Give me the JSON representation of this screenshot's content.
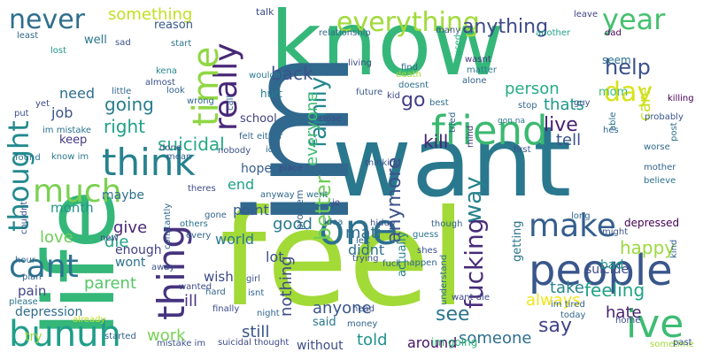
{
  "wordcloud": {
    "background": "#ffffff",
    "palette": [
      "#440154",
      "#482878",
      "#3e4a89",
      "#31688e",
      "#26828e",
      "#1f9e89",
      "#35b779",
      "#6ece58",
      "#b5de2b",
      "#fde725"
    ],
    "words": [
      {
        "text": "feel",
        "color": "#a2da37",
        "vertical": false
      },
      {
        "text": "know",
        "color": "#35b779",
        "vertical": false
      },
      {
        "text": "want",
        "color": "#2a788e",
        "vertical": false
      },
      {
        "text": "im",
        "color": "#31688e",
        "vertical": true
      },
      {
        "text": "life",
        "color": "#35b779",
        "vertical": true
      },
      {
        "text": "people",
        "color": "#39568c",
        "vertical": false
      },
      {
        "text": "friend",
        "color": "#3ab970",
        "vertical": false
      },
      {
        "text": "think",
        "color": "#26828e",
        "vertical": false
      },
      {
        "text": "one",
        "color": "#2c718e",
        "vertical": false
      },
      {
        "text": "ive",
        "color": "#3dbc74",
        "vertical": false
      },
      {
        "text": "really",
        "color": "#482878",
        "vertical": true
      },
      {
        "text": "time",
        "color": "#8fd744",
        "vertical": true
      },
      {
        "text": "thing",
        "color": "#46337f",
        "vertical": true
      },
      {
        "text": "cant",
        "color": "#2c728e",
        "vertical": false
      },
      {
        "text": "bunuh",
        "color": "#1f9e89",
        "vertical": false
      },
      {
        "text": "much",
        "color": "#7ad151",
        "vertical": false
      },
      {
        "text": "make",
        "color": "#355f8d",
        "vertical": false
      },
      {
        "text": "thought",
        "color": "#23898e",
        "vertical": true
      },
      {
        "text": "everything",
        "color": "#a0da39",
        "vertical": false
      },
      {
        "text": "never",
        "color": "#2e6e8e",
        "vertical": false
      },
      {
        "text": "year",
        "color": "#46c06f",
        "vertical": false
      },
      {
        "text": "day",
        "color": "#d8e219",
        "vertical": false
      },
      {
        "text": "help",
        "color": "#3b528b",
        "vertical": false
      },
      {
        "text": "family",
        "color": "#24878e",
        "vertical": true
      },
      {
        "text": "fucking",
        "color": "#472c7a",
        "vertical": true
      },
      {
        "text": "way",
        "color": "#26828e",
        "vertical": true
      },
      {
        "text": "anything",
        "color": "#3e4a89",
        "vertical": false
      },
      {
        "text": "something",
        "color": "#c2df23",
        "vertical": false
      },
      {
        "text": "go",
        "color": "#433e85",
        "vertical": false
      },
      {
        "text": "say",
        "color": "#414487",
        "vertical": false
      },
      {
        "text": "good",
        "color": "#2a768e",
        "vertical": false
      },
      {
        "text": "see",
        "color": "#2b748e",
        "vertical": false
      },
      {
        "text": "better",
        "color": "#6ece58",
        "vertical": true
      },
      {
        "text": "anymore",
        "color": "#3b528b",
        "vertical": true
      },
      {
        "text": "going",
        "color": "#287d8e",
        "vertical": false
      },
      {
        "text": "right",
        "color": "#1fa088",
        "vertical": false
      },
      {
        "text": "back",
        "color": "#3b528b",
        "vertical": false
      },
      {
        "text": "suicidal",
        "color": "#24aa83",
        "vertical": false
      },
      {
        "text": "kill",
        "color": "#482374",
        "vertical": false
      },
      {
        "text": "live",
        "color": "#482071",
        "vertical": false
      },
      {
        "text": "thats",
        "color": "#1f968b",
        "vertical": false
      },
      {
        "text": "tell",
        "color": "#3b528b",
        "vertical": false
      },
      {
        "text": "person",
        "color": "#25ac82",
        "vertical": false
      },
      {
        "text": "care",
        "color": "#c8e020",
        "vertical": true
      },
      {
        "text": "everyone",
        "color": "#3fbc73",
        "vertical": true
      },
      {
        "text": "nothing",
        "color": "#3e4c8a",
        "vertical": true
      },
      {
        "text": "happy",
        "color": "#9bd93c",
        "vertical": false
      },
      {
        "text": "always",
        "color": "#f1e51d",
        "vertical": false
      },
      {
        "text": "take",
        "color": "#25838e",
        "vertical": false
      },
      {
        "text": "feeling",
        "color": "#20a386",
        "vertical": false
      },
      {
        "text": "hate",
        "color": "#481f70",
        "vertical": false
      },
      {
        "text": "anyone",
        "color": "#39568c",
        "vertical": false
      },
      {
        "text": "someone",
        "color": "#2d708e",
        "vertical": false
      },
      {
        "text": "told",
        "color": "#20928c",
        "vertical": false
      },
      {
        "text": "around",
        "color": "#471063",
        "vertical": false
      },
      {
        "text": "work",
        "color": "#77d153",
        "vertical": false
      },
      {
        "text": "still",
        "color": "#39558c",
        "vertical": false
      },
      {
        "text": "love",
        "color": "#6ece58",
        "vertical": false
      },
      {
        "text": "give",
        "color": "#482878",
        "vertical": false
      },
      {
        "text": "die",
        "color": "#1fa287",
        "vertical": false
      },
      {
        "text": "parent",
        "color": "#56c667",
        "vertical": false
      },
      {
        "text": "ill",
        "color": "#46337f",
        "vertical": false
      },
      {
        "text": "month",
        "color": "#1f958b",
        "vertical": false
      },
      {
        "text": "end",
        "color": "#1fa188",
        "vertical": false
      },
      {
        "text": "need",
        "color": "#2e6d8e",
        "vertical": false
      },
      {
        "text": "job",
        "color": "#3a548c",
        "vertical": false
      },
      {
        "text": "mati",
        "color": "#2e6e8e",
        "vertical": false
      },
      {
        "text": "didnt",
        "color": "#2d708e",
        "vertical": false
      },
      {
        "text": "lot",
        "color": "#3b518b",
        "vertical": false
      },
      {
        "text": "point",
        "color": "#365d8d",
        "vertical": false
      },
      {
        "text": "world",
        "color": "#2a788e",
        "vertical": false
      },
      {
        "text": "hope",
        "color": "#355f8d",
        "vertical": false
      },
      {
        "text": "maybe",
        "color": "#2e6f8e",
        "vertical": false
      },
      {
        "text": "enough",
        "color": "#424186",
        "vertical": false
      },
      {
        "text": "wish",
        "color": "#3e4a89",
        "vertical": false
      },
      {
        "text": "wont",
        "color": "#2c718e",
        "vertical": false
      },
      {
        "text": "pain",
        "color": "#3f4788",
        "vertical": false
      },
      {
        "text": "depression",
        "color": "#2f6c8e",
        "vertical": false
      },
      {
        "text": "try",
        "color": "#9fda3a",
        "vertical": false
      },
      {
        "text": "said",
        "color": "#2a778e",
        "vertical": false
      },
      {
        "text": "without",
        "color": "#3d4d8a",
        "vertical": false
      },
      {
        "text": "im going",
        "color": "#31b57b",
        "vertical": false
      },
      {
        "text": "suicide",
        "color": "#3e4989",
        "vertical": false
      },
      {
        "text": "bad",
        "color": "#1e9c89",
        "vertical": false
      },
      {
        "text": "depressed",
        "color": "#440154",
        "vertical": false
      },
      {
        "text": "actually",
        "color": "#26818e",
        "vertical": true
      },
      {
        "text": "getting",
        "color": "#2b758e",
        "vertical": true
      },
      {
        "text": "school",
        "color": "#424186",
        "vertical": false
      },
      {
        "text": "keep",
        "color": "#453781",
        "vertical": false
      },
      {
        "text": "reason",
        "color": "#38588c",
        "vertical": false
      },
      {
        "text": "well",
        "color": "#2a768e",
        "vertical": false
      },
      {
        "text": "hurt",
        "color": "#287c8e",
        "vertical": false
      },
      {
        "text": "mom",
        "color": "#3fbc73",
        "vertical": false
      },
      {
        "text": "seem",
        "color": "#2c728e",
        "vertical": false
      },
      {
        "text": "problem",
        "color": "#33638d",
        "vertical": true
      },
      {
        "text": "talk",
        "color": "#3c4f8a",
        "vertical": false
      },
      {
        "text": "relationship",
        "color": "#31688e",
        "vertical": false
      },
      {
        "text": "many",
        "color": "#3b528b",
        "vertical": false
      },
      {
        "text": "used",
        "color": "#26ad81",
        "vertical": true
      },
      {
        "text": "another",
        "color": "#1fa188",
        "vertical": false
      },
      {
        "text": "dad",
        "color": "#440154",
        "vertical": false
      },
      {
        "text": "leave",
        "color": "#414487",
        "vertical": false
      },
      {
        "text": "wouldnt",
        "color": "#2a788e",
        "vertical": false
      },
      {
        "text": "lost",
        "color": "#1f9a8a",
        "vertical": false
      },
      {
        "text": "sad",
        "color": "#3b528b",
        "vertical": false
      },
      {
        "text": "start",
        "color": "#2b748e",
        "vertical": false
      },
      {
        "text": "least",
        "color": "#31688e",
        "vertical": false
      },
      {
        "text": "yet",
        "color": "#3e4a89",
        "vertical": false
      },
      {
        "text": "almost",
        "color": "#3b528b",
        "vertical": false
      },
      {
        "text": "kena",
        "color": "#25858e",
        "vertical": false
      },
      {
        "text": "little",
        "color": "#31688e",
        "vertical": false
      },
      {
        "text": "look",
        "color": "#33638d",
        "vertical": false
      },
      {
        "text": "im mistake",
        "color": "#2c728e",
        "vertical": false
      },
      {
        "text": "living",
        "color": "#3e4a89",
        "vertical": false
      },
      {
        "text": "find",
        "color": "#31688e",
        "vertical": false
      },
      {
        "text": "wasnt",
        "color": "#453781",
        "vertical": false
      },
      {
        "text": "matter",
        "color": "#2a788e",
        "vertical": false
      },
      {
        "text": "death",
        "color": "#a8db34",
        "vertical": false
      },
      {
        "text": "future",
        "color": "#38588c",
        "vertical": false
      },
      {
        "text": "doesnt",
        "color": "#2d708e",
        "vertical": false
      },
      {
        "text": "alone",
        "color": "#33638d",
        "vertical": false
      },
      {
        "text": "best",
        "color": "#2e6f8e",
        "vertical": false
      },
      {
        "text": "kid",
        "color": "#3e4a89",
        "vertical": false
      },
      {
        "text": "stop",
        "color": "#31688e",
        "vertical": false
      },
      {
        "text": "guy",
        "color": "#3b528b",
        "vertical": false
      },
      {
        "text": "tried",
        "color": "#33638d",
        "vertical": true
      },
      {
        "text": "mind",
        "color": "#46337f",
        "vertical": true
      },
      {
        "text": "close",
        "color": "#3e4a89",
        "vertical": false
      },
      {
        "text": "gon na",
        "color": "#2c728e",
        "vertical": false
      },
      {
        "text": "probably",
        "color": "#38588c",
        "vertical": false
      },
      {
        "text": "able",
        "color": "#2b748e",
        "vertical": true
      },
      {
        "text": "hes",
        "color": "#31688e",
        "vertical": false
      },
      {
        "text": "killing",
        "color": "#440154",
        "vertical": false
      },
      {
        "text": "post",
        "color": "#2e6e8e",
        "vertical": true
      },
      {
        "text": "worse",
        "color": "#31688e",
        "vertical": false
      },
      {
        "text": "first",
        "color": "#3b528b",
        "vertical": false
      },
      {
        "text": "mother",
        "color": "#33638d",
        "vertical": false
      },
      {
        "text": "believe",
        "color": "#2c728e",
        "vertical": false
      },
      {
        "text": "call",
        "color": "#33638d",
        "vertical": true
      },
      {
        "text": "put",
        "color": "#3b528b",
        "vertical": false
      },
      {
        "text": "felt",
        "color": "#31688e",
        "vertical": false
      },
      {
        "text": "either",
        "color": "#2e6f8e",
        "vertical": false
      },
      {
        "text": "done",
        "color": "#3b528b",
        "vertical": false
      },
      {
        "text": "mean",
        "color": "#33638d",
        "vertical": false
      },
      {
        "text": "found",
        "color": "#2c728e",
        "vertical": false
      },
      {
        "text": "know im",
        "color": "#2a788e",
        "vertical": false
      },
      {
        "text": "nobody",
        "color": "#3b528b",
        "vertical": false
      },
      {
        "text": "id",
        "color": "#31688e",
        "vertical": false
      },
      {
        "text": "place",
        "color": "#3e4a89",
        "vertical": false
      },
      {
        "text": "went",
        "color": "#2d708e",
        "vertical": false
      },
      {
        "text": "thinking",
        "color": "#3b528b",
        "vertical": false
      },
      {
        "text": "theres",
        "color": "#3e4a89",
        "vertical": false
      },
      {
        "text": "anyway",
        "color": "#31688e",
        "vertical": false
      },
      {
        "text": "je",
        "color": "#414487",
        "vertical": false
      },
      {
        "text": "couldnt",
        "color": "#3b528b",
        "vertical": true
      },
      {
        "text": "constantly",
        "color": "#31688e",
        "vertical": true
      },
      {
        "text": "gone",
        "color": "#33638d",
        "vertical": false
      },
      {
        "text": "every",
        "color": "#31688e",
        "vertical": false
      },
      {
        "text": "others",
        "color": "#2c728e",
        "vertical": false
      },
      {
        "text": "new",
        "color": "#3e4a89",
        "vertical": false
      },
      {
        "text": "hour",
        "color": "#31688e",
        "vertical": false
      },
      {
        "text": "away",
        "color": "#3b528b",
        "vertical": false
      },
      {
        "text": "plan",
        "color": "#33638d",
        "vertical": false
      },
      {
        "text": "please",
        "color": "#2c728e",
        "vertical": false
      },
      {
        "text": "wanted",
        "color": "#3e4a89",
        "vertical": false
      },
      {
        "text": "hard",
        "color": "#31688e",
        "vertical": false
      },
      {
        "text": "girl",
        "color": "#3b528b",
        "vertical": false
      },
      {
        "text": "isnt",
        "color": "#33638d",
        "vertical": false
      },
      {
        "text": "idea",
        "color": "#31688e",
        "vertical": false
      },
      {
        "text": "hidup",
        "color": "#3e4a89",
        "vertical": false
      },
      {
        "text": "left",
        "color": "#31688e",
        "vertical": false
      },
      {
        "text": "trying",
        "color": "#3b528b",
        "vertical": false
      },
      {
        "text": "fuck",
        "color": "#33638d",
        "vertical": false
      },
      {
        "text": "guess",
        "color": "#2c728e",
        "vertical": false
      },
      {
        "text": "shes",
        "color": "#3b528b",
        "vertical": false
      },
      {
        "text": "happen",
        "color": "#31688e",
        "vertical": false
      },
      {
        "text": "understand",
        "color": "#2e6f8e",
        "vertical": true
      },
      {
        "text": "want die",
        "color": "#3e4a89",
        "vertical": false
      },
      {
        "text": "im tired",
        "color": "#33638d",
        "vertical": false
      },
      {
        "text": "long",
        "color": "#31688e",
        "vertical": false
      },
      {
        "text": "might",
        "color": "#3b528b",
        "vertical": false
      },
      {
        "text": "kind",
        "color": "#33638d",
        "vertical": true
      },
      {
        "text": "today",
        "color": "#31688e",
        "vertical": false
      },
      {
        "text": "home",
        "color": "#3e4a89",
        "vertical": false
      },
      {
        "text": "sometime",
        "color": "#a0da39",
        "vertical": false
      },
      {
        "text": "past",
        "color": "#3b528b",
        "vertical": false
      },
      {
        "text": "started",
        "color": "#33638d",
        "vertical": false
      },
      {
        "text": "finally",
        "color": "#3e4a89",
        "vertical": false
      },
      {
        "text": "already",
        "color": "#c2df23",
        "vertical": false
      },
      {
        "text": "night",
        "color": "#31688e",
        "vertical": false
      },
      {
        "text": "head",
        "color": "#3b528b",
        "vertical": false
      },
      {
        "text": "money",
        "color": "#33638d",
        "vertical": false
      },
      {
        "text": "suicidal thought",
        "color": "#3e4a89",
        "vertical": false
      },
      {
        "text": "mistake im",
        "color": "#3b528b",
        "vertical": false
      },
      {
        "text": "wrong",
        "color": "#31688e",
        "vertical": false
      },
      {
        "text": "though",
        "color": "#33638d",
        "vertical": false
      }
    ]
  }
}
